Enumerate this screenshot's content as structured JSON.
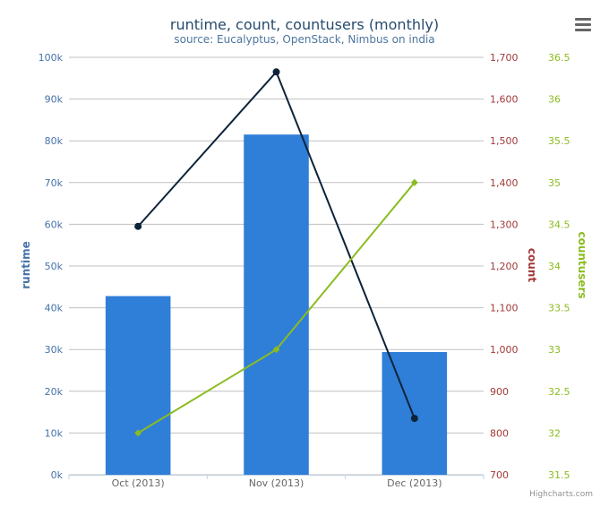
{
  "chart_data": {
    "type": "bar",
    "title": "runtime, count, countusers (monthly)",
    "subtitle": "source: Eucalyptus, OpenStack, Nimbus on india",
    "categories": [
      "Oct (2013)",
      "Nov (2013)",
      "Dec (2013)"
    ],
    "series": [
      {
        "name": "runtime",
        "type": "bar",
        "axis": "runtime",
        "values": [
          42800,
          81500,
          29400
        ]
      },
      {
        "name": "count",
        "type": "line",
        "axis": "count",
        "values": [
          1295,
          1665,
          835
        ]
      },
      {
        "name": "countusers",
        "type": "line",
        "axis": "countusers",
        "values": [
          32,
          33,
          35
        ]
      }
    ],
    "axes": {
      "runtime": {
        "label": "runtime",
        "range": [
          0,
          100000
        ],
        "ticks": [
          "0k",
          "10k",
          "20k",
          "30k",
          "40k",
          "50k",
          "60k",
          "70k",
          "80k",
          "90k",
          "100k"
        ]
      },
      "count": {
        "label": "count",
        "range": [
          700,
          1700
        ],
        "ticks": [
          "700",
          "800",
          "900",
          "1,000",
          "1,100",
          "1,200",
          "1,300",
          "1,400",
          "1,500",
          "1,600",
          "1,700"
        ]
      },
      "countusers": {
        "label": "countusers",
        "range": [
          31.5,
          36.5
        ],
        "ticks": [
          "31.5",
          "32",
          "32.5",
          "33",
          "33.5",
          "34",
          "34.5",
          "35",
          "35.5",
          "36",
          "36.5"
        ]
      }
    },
    "grid": true,
    "colors": {
      "runtime": "#2f7ed8",
      "count": "#0d233a",
      "countusers": "#8bbc21",
      "count_axis": "#a23a3a",
      "title": "#274b6d",
      "subtitle": "#4d759e"
    }
  },
  "credits": "Highcharts.com",
  "menu_icon": "menu-icon"
}
